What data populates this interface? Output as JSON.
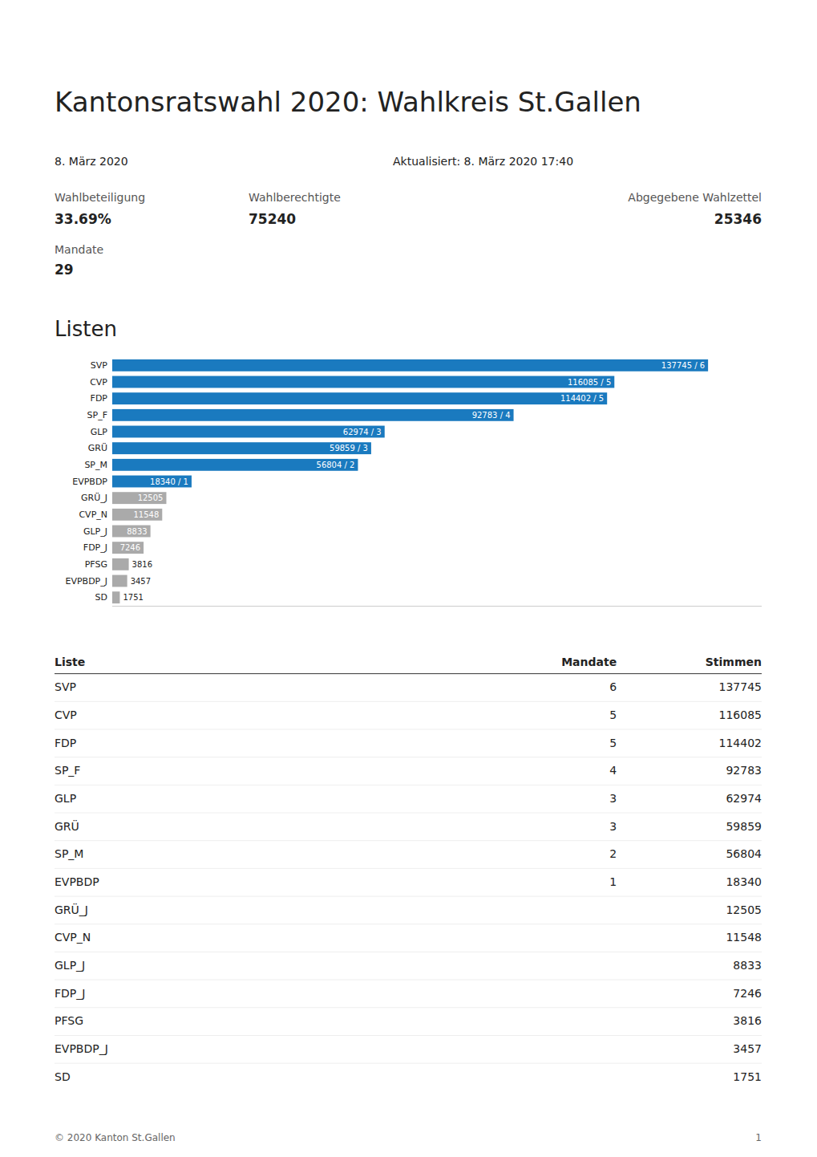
{
  "chart_data": {
    "type": "bar",
    "orientation": "horizontal",
    "title": "Kantonsratswahl 2020: Wahlkreis St.Gallen",
    "subtitle": "Listen",
    "annotations": [
      "8. März 2020",
      "Aktualisiert: 8. März 2020 17:40"
    ],
    "stats": [
      {
        "label": "Wahlbeteiligung",
        "value": "33.69%"
      },
      {
        "label": "Wahlberechtigte",
        "value": "75240"
      },
      {
        "label": "Abgegebene Wahlzettel",
        "value": "25346"
      },
      {
        "label": "Mandate",
        "value": "29"
      }
    ],
    "categories": [
      "SVP",
      "CVP",
      "FDP",
      "SP_F",
      "GLP",
      "GRÜ",
      "SP_M",
      "EVPBDP",
      "GRÜ_J",
      "CVP_N",
      "GLP_J",
      "FDP_J",
      "PFSG",
      "EVPBDP_J",
      "SD"
    ],
    "values": [
      137745,
      116085,
      114402,
      92783,
      62974,
      59859,
      56804,
      18340,
      12505,
      11548,
      8833,
      7246,
      3816,
      3457,
      1751
    ],
    "value_labels": [
      "137745 / 6",
      "116085 / 5",
      "114402 / 5",
      "92783 / 4",
      "62974 / 3",
      "59859 / 3",
      "56804 / 2",
      "18340 / 1",
      "12505",
      "11548",
      "8833",
      "7246",
      "3816",
      "3457",
      "1751"
    ],
    "mandate": [
      6,
      5,
      5,
      4,
      3,
      3,
      2,
      1,
      null,
      null,
      null,
      null,
      null,
      null,
      null
    ],
    "colors": [
      "#1a7abf",
      "#1a7abf",
      "#1a7abf",
      "#1a7abf",
      "#1a7abf",
      "#1a7abf",
      "#1a7abf",
      "#1a7abf",
      "#aaaaaa",
      "#aaaaaa",
      "#aaaaaa",
      "#aaaaaa",
      "#aaaaaa",
      "#aaaaaa",
      "#aaaaaa"
    ],
    "xlim": [
      0,
      150142.05
    ],
    "tick_labels": "y",
    "data_labels": true,
    "grid": false,
    "columns": [
      "Liste",
      "Mandate",
      "Stimmen"
    ],
    "footer": [
      "© 2020 Kanton St.Gallen",
      "1"
    ]
  }
}
